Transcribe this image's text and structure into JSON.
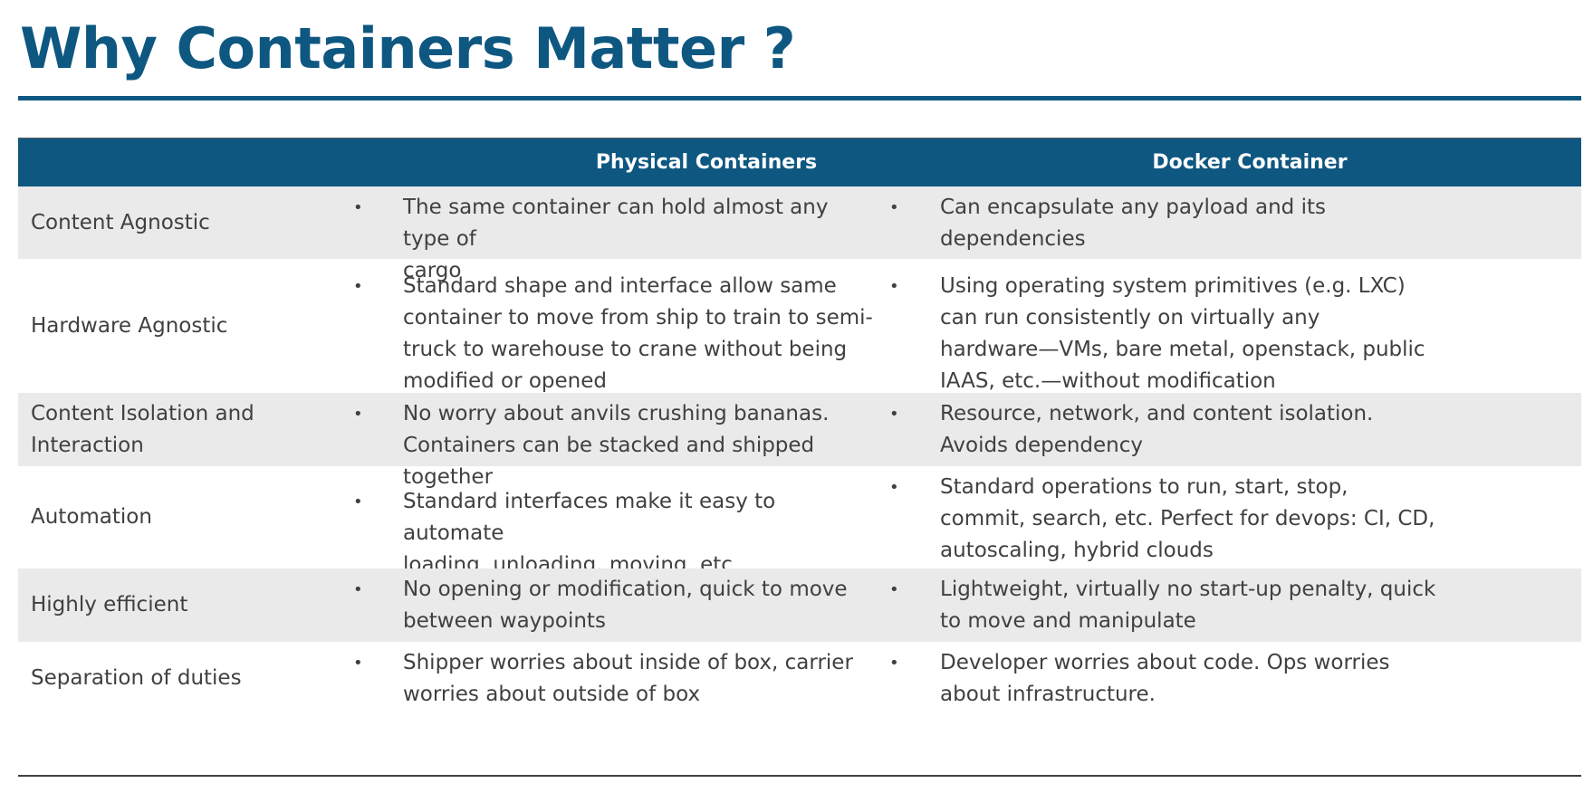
{
  "title": "Why Containers Matter ?",
  "columns": {
    "physical": "Physical Containers",
    "docker": "Docker Container"
  },
  "bullet": "•",
  "rows": [
    {
      "label": "Content Agnostic",
      "physical": "The same container can hold almost any type of\ncargo",
      "docker": "Can encapsulate any payload and its\ndependencies"
    },
    {
      "label": "Hardware Agnostic",
      "physical": "Standard shape and interface allow same\ncontainer to move from ship to train to semi-\ntruck to warehouse to crane without being\nmodified or opened",
      "docker": "Using operating system primitives (e.g. LXC)\ncan run consistently on virtually any\nhardware—VMs, bare metal, openstack, public\nIAAS, etc.—without modification"
    },
    {
      "label": "Content Isolation and\nInteraction",
      "physical": "No worry about anvils crushing bananas.\nContainers can be stacked and shipped together",
      "docker": "Resource, network, and content isolation.\nAvoids dependency"
    },
    {
      "label": "Automation",
      "physical": "Standard interfaces make it easy to automate\nloading, unloading, moving, etc.",
      "docker": "Standard operations to run, start, stop,\ncommit, search, etc. Perfect for devops: CI, CD,\nautoscaling, hybrid clouds"
    },
    {
      "label": "Highly efficient",
      "physical": "No opening or modification, quick to move\nbetween waypoints",
      "docker": "Lightweight, virtually no start-up penalty, quick\nto move and manipulate"
    },
    {
      "label": "Separation of duties",
      "physical": "Shipper worries about inside of box, carrier\nworries about outside of box",
      "docker": "Developer worries about code. Ops worries\nabout infrastructure."
    }
  ]
}
